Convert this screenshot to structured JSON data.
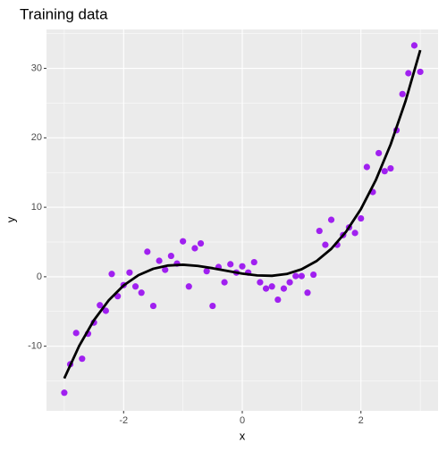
{
  "chart_data": {
    "type": "scatter",
    "title": "Training data",
    "x_label": "x",
    "y_label": "y",
    "x": [
      -3.0,
      -2.9,
      -2.8,
      -2.7,
      -2.6,
      -2.5,
      -2.4,
      -2.3,
      -2.2,
      -2.1,
      -2.0,
      -1.9,
      -1.8,
      -1.7,
      -1.6,
      -1.5,
      -1.4,
      -1.3,
      -1.2,
      -1.1,
      -1.0,
      -0.9,
      -0.8,
      -0.7,
      -0.6,
      -0.5,
      -0.4,
      -0.3,
      -0.2,
      -0.1,
      0.0,
      0.1,
      0.2,
      0.3,
      0.4,
      0.5,
      0.6,
      0.7,
      0.8,
      0.9,
      1.0,
      1.1,
      1.2,
      1.3,
      1.4,
      1.5,
      1.6,
      1.7,
      1.8,
      1.9,
      2.0,
      2.1,
      2.2,
      2.3,
      2.4,
      2.5,
      2.6,
      2.7,
      2.8,
      2.9,
      3.0
    ],
    "values": [
      -16.7,
      -12.6,
      -8.1,
      -11.8,
      -8.2,
      -6.6,
      -4.1,
      -4.9,
      0.4,
      -2.8,
      -1.2,
      0.6,
      -1.4,
      -2.3,
      3.6,
      -4.2,
      2.3,
      1.0,
      3.0,
      1.9,
      5.1,
      -1.4,
      4.1,
      4.8,
      0.8,
      -4.2,
      1.4,
      -0.8,
      1.8,
      0.6,
      1.5,
      0.6,
      2.1,
      -0.8,
      -1.7,
      -1.4,
      -3.3,
      -1.7,
      -0.8,
      0.1,
      0.1,
      -2.3,
      0.3,
      6.6,
      4.6,
      8.2,
      4.6,
      6.0,
      7.1,
      6.3,
      8.4,
      15.8,
      12.2,
      17.8,
      15.2,
      15.6,
      21.1,
      26.3,
      29.3,
      33.3,
      29.5
    ],
    "color": "#a020f0",
    "fit": {
      "x": [
        -3,
        -2.75,
        -2.5,
        -2.25,
        -2,
        -1.75,
        -1.5,
        -1.25,
        -1,
        -0.75,
        -0.5,
        -0.25,
        0,
        0.25,
        0.5,
        0.75,
        1,
        1.25,
        1.5,
        1.75,
        2,
        2.25,
        2.5,
        2.75,
        3
      ],
      "values": [
        -14.63,
        -9.97,
        -6.25,
        -3.38,
        -1.25,
        0.23,
        1.15,
        1.62,
        1.73,
        1.56,
        1.23,
        0.83,
        0.45,
        0.19,
        0.14,
        0.4,
        1.08,
        2.25,
        4.02,
        6.49,
        9.75,
        13.9,
        19.03,
        25.24,
        32.63
      ],
      "color": "#000000"
    },
    "xlim": [
      -3.3,
      3.3
    ],
    "ylim": [
      -19.3,
      35.6
    ],
    "xticks": [
      -2,
      0,
      2
    ],
    "yticks": [
      -10,
      0,
      10,
      20,
      30
    ],
    "grid": true
  }
}
